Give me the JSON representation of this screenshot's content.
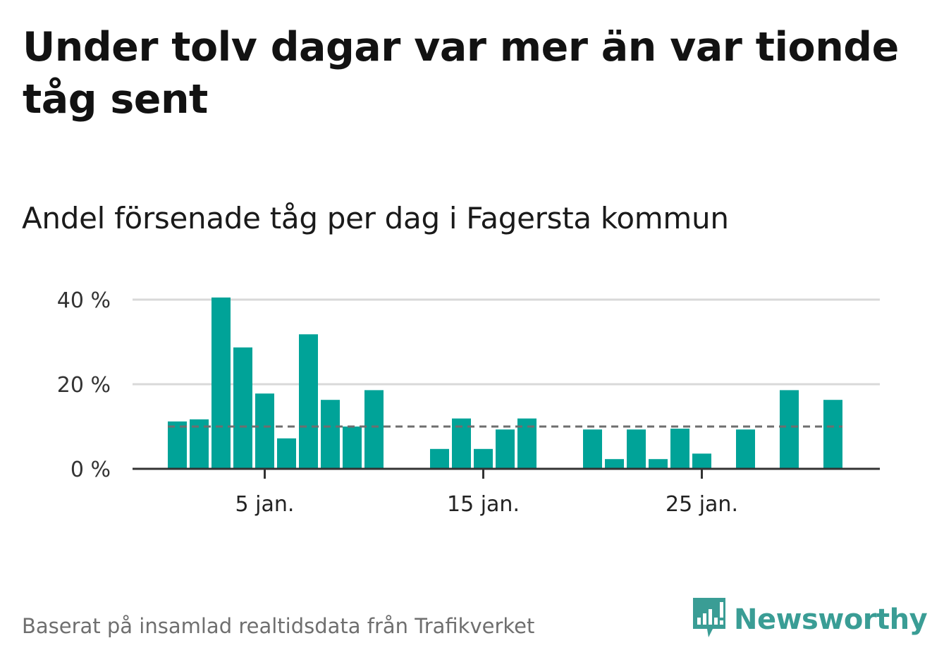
{
  "title": "Under tolv dagar var mer än var tionde tåg sent",
  "subtitle": "Andel försenade tåg per dag i Fagersta kommun",
  "source": "Baserat på insamlad realtidsdata från Trafikverket",
  "brand": {
    "name": "Newsworthy",
    "logo_icon": "newsworthy-bar-chart-icon"
  },
  "colors": {
    "bar": "#00a398",
    "reference_line": "#6e6e6e",
    "grid": "#d9d9d9",
    "axis": "#333333",
    "brand": "#3a9d95"
  },
  "chart_data": {
    "type": "bar",
    "xlabel": "",
    "ylabel": "",
    "ylim": [
      0,
      45
    ],
    "yticks": [
      0,
      20,
      40
    ],
    "ytick_labels": [
      "0 %",
      "20 %",
      "40 %"
    ],
    "grid": true,
    "xticks": [
      5,
      15,
      25
    ],
    "xtick_labels": [
      "5 jan.",
      "15 jan.",
      "25 jan."
    ],
    "days": [
      1,
      2,
      3,
      4,
      5,
      6,
      7,
      8,
      9,
      10,
      11,
      12,
      13,
      14,
      15,
      16,
      17,
      18,
      19,
      20,
      21,
      22,
      23,
      24,
      25,
      26,
      27,
      28,
      29,
      30,
      31
    ],
    "values": [
      11.2,
      11.7,
      40.5,
      28.7,
      17.8,
      7.2,
      31.8,
      16.3,
      10.0,
      18.6,
      null,
      null,
      4.7,
      11.9,
      4.7,
      9.3,
      11.9,
      null,
      null,
      9.3,
      2.3,
      9.3,
      2.3,
      9.5,
      3.6,
      null,
      9.3,
      null,
      18.6,
      null,
      16.3
    ],
    "reference_line": {
      "value": 10,
      "style": "dashed"
    }
  }
}
